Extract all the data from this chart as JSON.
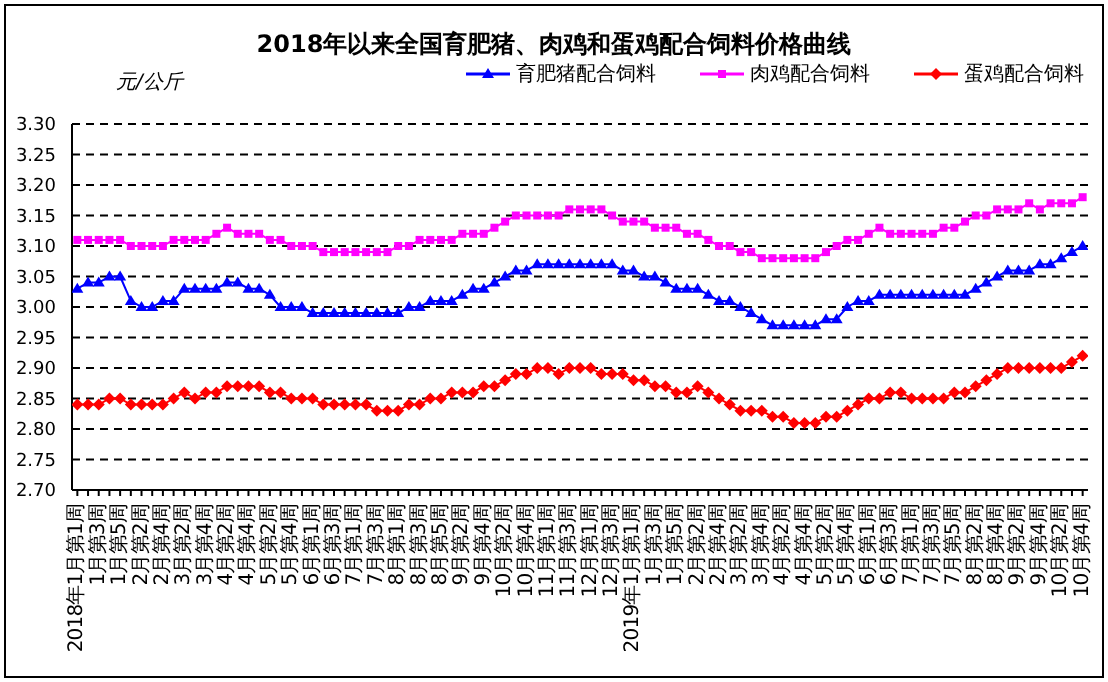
{
  "chart_data": {
    "type": "line",
    "title": "2018年以来全国育肥猪、肉鸡和蛋鸡配合饲料价格曲线",
    "ylabel": "元/公斤",
    "categories": [
      "2018年1月第1周",
      null,
      "1月第3周",
      null,
      "1月第5周",
      null,
      "2月第2周",
      null,
      "2月第4周",
      null,
      "3月第2周",
      null,
      "3月第4周",
      null,
      "4月第2周",
      null,
      "4月第4周",
      null,
      "5月第2周",
      null,
      "5月第4周",
      null,
      "6月第1周",
      null,
      "6月第3周",
      null,
      "7月第1周",
      null,
      "7月第3周",
      null,
      "8月第1周",
      null,
      "8月第3周",
      null,
      "8月第5周",
      null,
      "9月第2周",
      null,
      "9月第4周",
      null,
      "10月第2周",
      null,
      "10月第4周",
      null,
      "11月第1周",
      null,
      "11月第3周",
      null,
      "12月第1周",
      null,
      "12月第3周",
      null,
      "2019年1月第1周",
      null,
      "1月第3周",
      null,
      "1月第5周",
      null,
      "2月第2周",
      null,
      "2月第4周",
      null,
      "3月第2周",
      null,
      "3月第4周",
      null,
      "4月第2周",
      null,
      "4月第4周",
      null,
      "5月第2周",
      null,
      "5月第4周",
      null,
      "6月第1周",
      null,
      "6月第3周",
      null,
      "7月第1周",
      null,
      "7月第3周",
      null,
      "7月第5周",
      null,
      "8月第2周",
      null,
      "8月第4周",
      null,
      "9月第2周",
      null,
      "9月第4周",
      null,
      "10月第2周",
      null,
      "10月第4周"
    ],
    "series": [
      {
        "name": "育肥猪配合饲料",
        "color": "#0000ff",
        "marker": "triangle",
        "values": [
          3.03,
          3.04,
          3.04,
          3.05,
          3.05,
          3.01,
          3.0,
          3.0,
          3.01,
          3.01,
          3.03,
          3.03,
          3.03,
          3.03,
          3.04,
          3.04,
          3.03,
          3.03,
          3.02,
          3.0,
          3.0,
          3.0,
          2.99,
          2.99,
          2.99,
          2.99,
          2.99,
          2.99,
          2.99,
          2.99,
          2.99,
          3.0,
          3.0,
          3.01,
          3.01,
          3.01,
          3.02,
          3.03,
          3.03,
          3.04,
          3.05,
          3.06,
          3.06,
          3.07,
          3.07,
          3.07,
          3.07,
          3.07,
          3.07,
          3.07,
          3.07,
          3.06,
          3.06,
          3.05,
          3.05,
          3.04,
          3.03,
          3.03,
          3.03,
          3.02,
          3.01,
          3.01,
          3.0,
          2.99,
          2.98,
          2.97,
          2.97,
          2.97,
          2.97,
          2.97,
          2.98,
          2.98,
          3.0,
          3.01,
          3.01,
          3.02,
          3.02,
          3.02,
          3.02,
          3.02,
          3.02,
          3.02,
          3.02,
          3.02,
          3.03,
          3.04,
          3.05,
          3.06,
          3.06,
          3.06,
          3.07,
          3.07,
          3.08,
          3.09,
          3.1
        ]
      },
      {
        "name": "肉鸡配合饲料",
        "color": "#ff00ff",
        "marker": "square",
        "values": [
          3.11,
          3.11,
          3.11,
          3.11,
          3.11,
          3.1,
          3.1,
          3.1,
          3.1,
          3.11,
          3.11,
          3.11,
          3.11,
          3.12,
          3.13,
          3.12,
          3.12,
          3.12,
          3.11,
          3.11,
          3.1,
          3.1,
          3.1,
          3.09,
          3.09,
          3.09,
          3.09,
          3.09,
          3.09,
          3.09,
          3.1,
          3.1,
          3.11,
          3.11,
          3.11,
          3.11,
          3.12,
          3.12,
          3.12,
          3.13,
          3.14,
          3.15,
          3.15,
          3.15,
          3.15,
          3.15,
          3.16,
          3.16,
          3.16,
          3.16,
          3.15,
          3.14,
          3.14,
          3.14,
          3.13,
          3.13,
          3.13,
          3.12,
          3.12,
          3.11,
          3.1,
          3.1,
          3.09,
          3.09,
          3.08,
          3.08,
          3.08,
          3.08,
          3.08,
          3.08,
          3.09,
          3.1,
          3.11,
          3.11,
          3.12,
          3.13,
          3.12,
          3.12,
          3.12,
          3.12,
          3.12,
          3.13,
          3.13,
          3.14,
          3.15,
          3.15,
          3.16,
          3.16,
          3.16,
          3.17,
          3.16,
          3.17,
          3.17,
          3.17,
          3.18
        ]
      },
      {
        "name": "蛋鸡配合饲料",
        "color": "#ff0000",
        "marker": "diamond",
        "values": [
          2.84,
          2.84,
          2.84,
          2.85,
          2.85,
          2.84,
          2.84,
          2.84,
          2.84,
          2.85,
          2.86,
          2.85,
          2.86,
          2.86,
          2.87,
          2.87,
          2.87,
          2.87,
          2.86,
          2.86,
          2.85,
          2.85,
          2.85,
          2.84,
          2.84,
          2.84,
          2.84,
          2.84,
          2.83,
          2.83,
          2.83,
          2.84,
          2.84,
          2.85,
          2.85,
          2.86,
          2.86,
          2.86,
          2.87,
          2.87,
          2.88,
          2.89,
          2.89,
          2.9,
          2.9,
          2.89,
          2.9,
          2.9,
          2.9,
          2.89,
          2.89,
          2.89,
          2.88,
          2.88,
          2.87,
          2.87,
          2.86,
          2.86,
          2.87,
          2.86,
          2.85,
          2.84,
          2.83,
          2.83,
          2.83,
          2.82,
          2.82,
          2.81,
          2.81,
          2.81,
          2.82,
          2.82,
          2.83,
          2.84,
          2.85,
          2.85,
          2.86,
          2.86,
          2.85,
          2.85,
          2.85,
          2.85,
          2.86,
          2.86,
          2.87,
          2.88,
          2.89,
          2.9,
          2.9,
          2.9,
          2.9,
          2.9,
          2.9,
          2.91,
          2.92
        ]
      }
    ],
    "ylim": [
      2.7,
      3.3
    ],
    "yticks": [
      {
        "value": 2.7,
        "label": "2.70"
      },
      {
        "value": 2.75,
        "label": "2.75"
      },
      {
        "value": 2.8,
        "label": "2.80"
      },
      {
        "value": 2.85,
        "label": "2.85"
      },
      {
        "value": 2.9,
        "label": "2.90"
      },
      {
        "value": 2.95,
        "label": "2.95"
      },
      {
        "value": 3.0,
        "label": "3.00"
      },
      {
        "value": 3.05,
        "label": "3.05"
      },
      {
        "value": 3.1,
        "label": "3.10"
      },
      {
        "value": 3.15,
        "label": "3.15"
      },
      {
        "value": 3.2,
        "label": "3.20"
      },
      {
        "value": 3.25,
        "label": "3.25"
      },
      {
        "value": 3.3,
        "label": "3.30"
      }
    ],
    "grid": "y",
    "legend": "top right",
    "line_style": "solid"
  }
}
